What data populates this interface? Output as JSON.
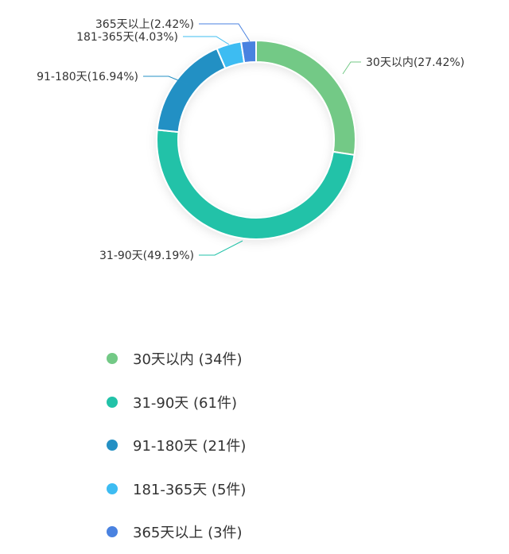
{
  "chart_data": {
    "type": "pie",
    "variant": "donut",
    "legend_position": "bottom",
    "slices": [
      {
        "name": "30天以内",
        "count": 34,
        "percent": 27.42,
        "label": "30天以内(27.42%)",
        "legend": "30天以内  (34件)",
        "color": "#73c986"
      },
      {
        "name": "31-90天",
        "count": 61,
        "percent": 49.19,
        "label": "31-90天(49.19%)",
        "legend": "31-90天  (61件)",
        "color": "#22c2a8"
      },
      {
        "name": "91-180天",
        "count": 21,
        "percent": 16.94,
        "label": "91-180天(16.94%)",
        "legend": "91-180天  (21件)",
        "color": "#2490c4"
      },
      {
        "name": "181-365天",
        "count": 5,
        "percent": 4.03,
        "label": "181-365天(4.03%)",
        "legend": "181-365天  (5件)",
        "color": "#3dbcf2"
      },
      {
        "name": "365天以上",
        "count": 3,
        "percent": 2.42,
        "label": "365天以上(2.42%)",
        "legend": "365天以上  (3件)",
        "color": "#4a82e0"
      }
    ]
  }
}
